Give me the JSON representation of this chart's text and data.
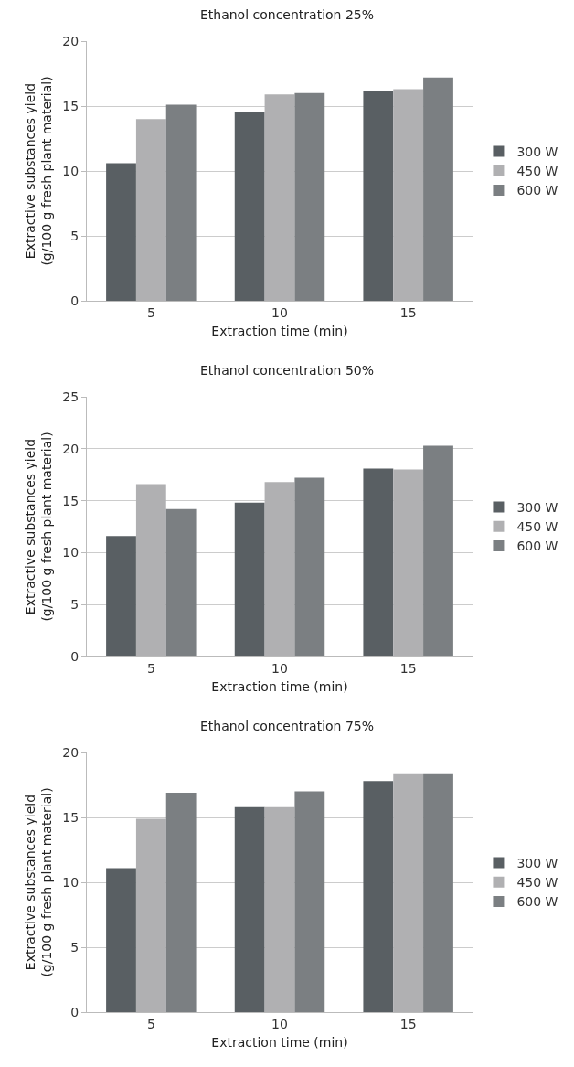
{
  "chart_data": [
    {
      "type": "bar",
      "title": "Ethanol concentration 25%",
      "xlabel": "Extraction time (min)",
      "ylabel": "Extractive substances yield\n(g/100 g fresh plant material)",
      "categories": [
        "5",
        "10",
        "15"
      ],
      "ylim": [
        0,
        20
      ],
      "yticks": [
        0,
        5,
        10,
        15,
        20
      ],
      "grid": "y",
      "legend": "right",
      "series": [
        {
          "name": "300 W",
          "color": "#595f63",
          "values": [
            10.6,
            14.5,
            16.2
          ]
        },
        {
          "name": "450 W",
          "color": "#b0b0b2",
          "values": [
            14.0,
            15.9,
            16.3
          ]
        },
        {
          "name": "600 W",
          "color": "#7b7f82",
          "values": [
            15.1,
            16.0,
            17.2
          ]
        }
      ]
    },
    {
      "type": "bar",
      "title": "Ethanol concentration 50%",
      "xlabel": "Extraction time (min)",
      "ylabel": "Extractive substances yield\n(g/100 g fresh plant material)",
      "categories": [
        "5",
        "10",
        "15"
      ],
      "ylim": [
        0,
        25
      ],
      "yticks": [
        0,
        5,
        10,
        15,
        20,
        25
      ],
      "grid": "y",
      "legend": "right",
      "series": [
        {
          "name": "300 W",
          "color": "#595f63",
          "values": [
            11.6,
            14.8,
            18.1
          ]
        },
        {
          "name": "450 W",
          "color": "#b0b0b2",
          "values": [
            16.6,
            16.8,
            18.0
          ]
        },
        {
          "name": "600 W",
          "color": "#7b7f82",
          "values": [
            14.2,
            17.2,
            20.3
          ]
        }
      ]
    },
    {
      "type": "bar",
      "title": "Ethanol concentration 75%",
      "xlabel": "Extraction time (min)",
      "ylabel": "Extractive substances yield\n(g/100 g fresh plant material)",
      "categories": [
        "5",
        "10",
        "15"
      ],
      "ylim": [
        0,
        20
      ],
      "yticks": [
        0,
        5,
        10,
        15,
        20
      ],
      "grid": "y",
      "legend": "right",
      "series": [
        {
          "name": "300 W",
          "color": "#595f63",
          "values": [
            11.1,
            15.8,
            17.8
          ]
        },
        {
          "name": "450 W",
          "color": "#b0b0b2",
          "values": [
            14.9,
            15.8,
            18.4
          ]
        },
        {
          "name": "600 W",
          "color": "#7b7f82",
          "values": [
            16.9,
            17.0,
            18.4
          ]
        }
      ]
    }
  ]
}
